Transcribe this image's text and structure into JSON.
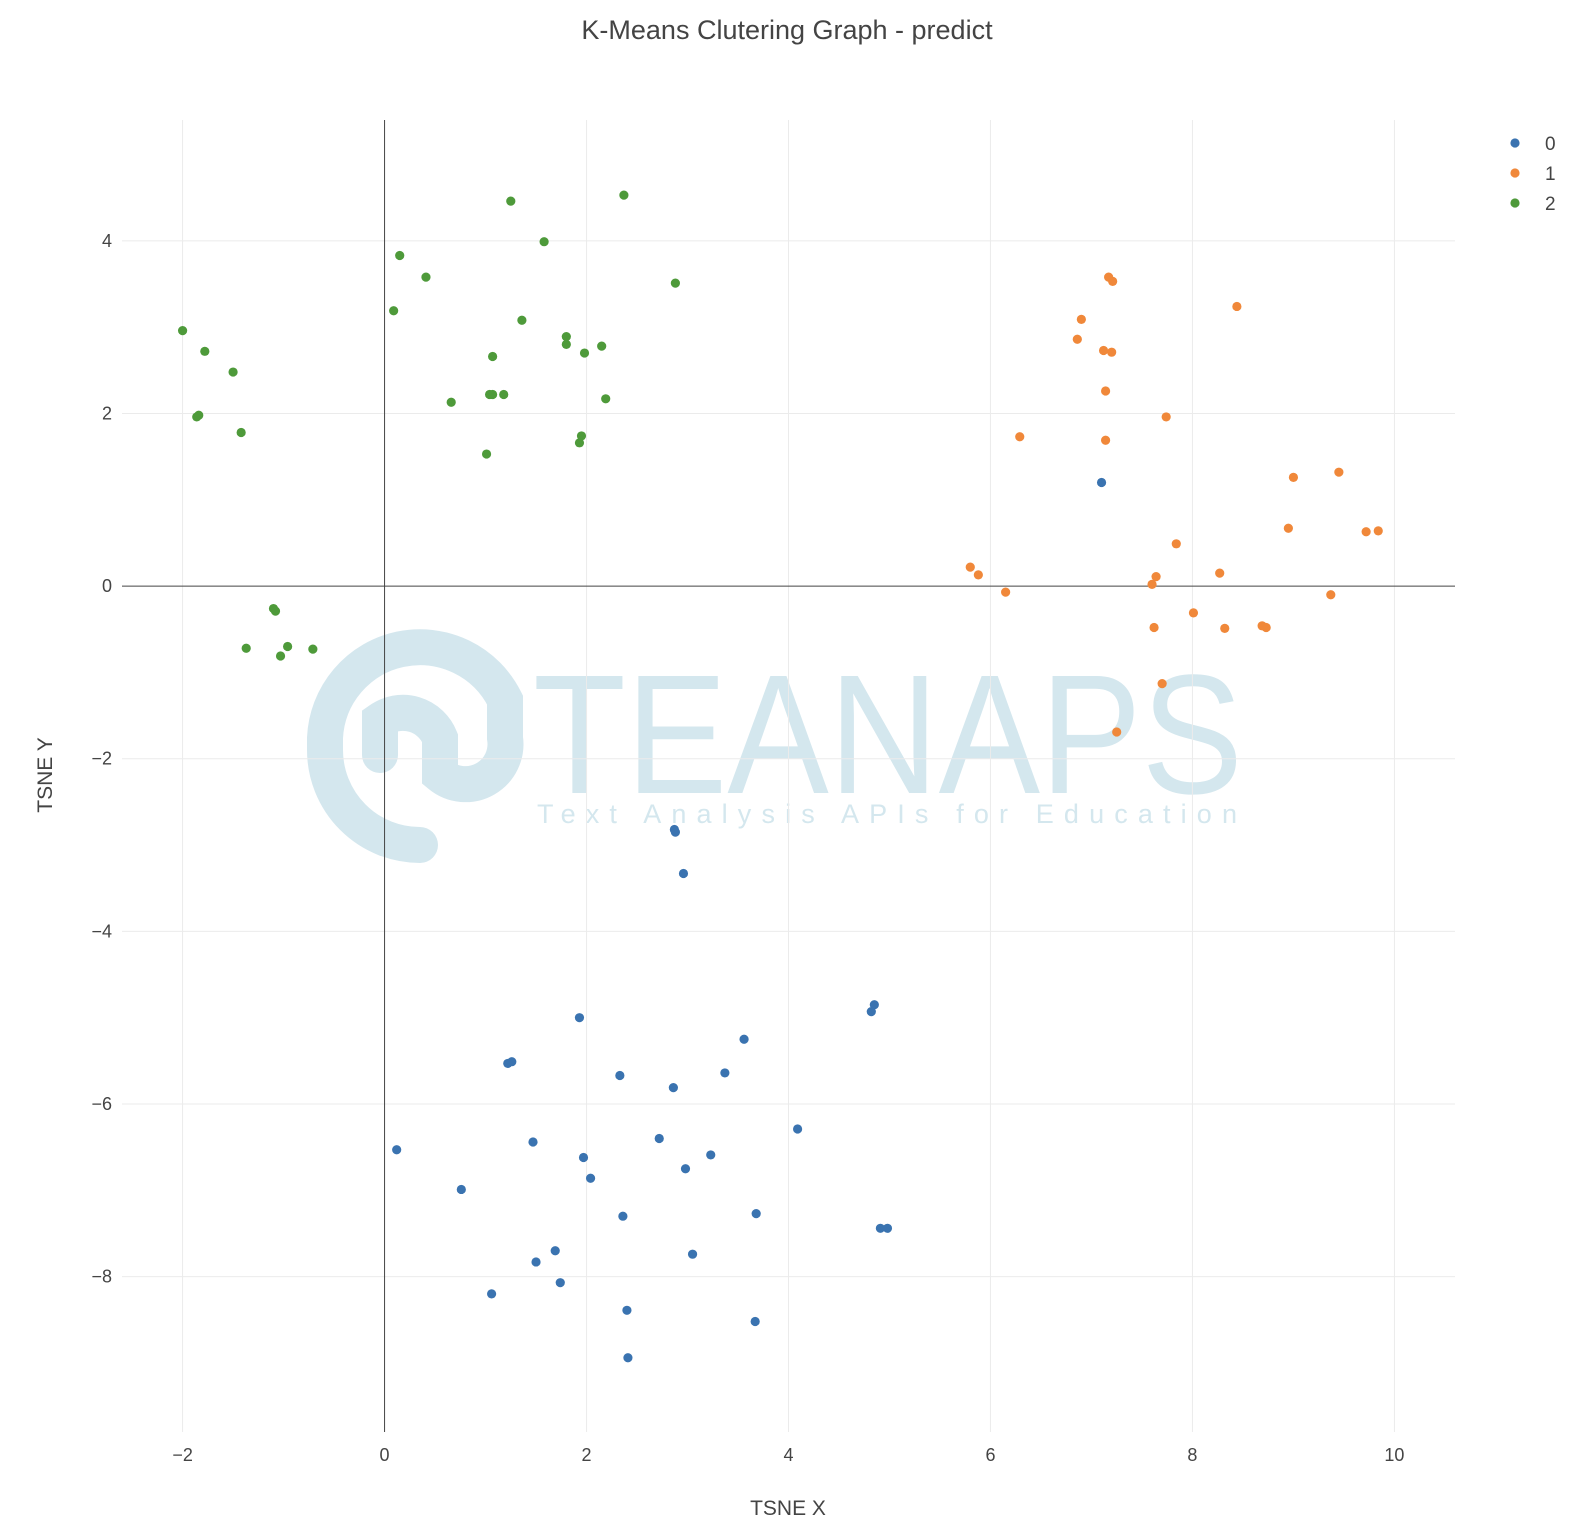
{
  "chart_data": {
    "type": "scatter",
    "title": "K-Means Clutering Graph - predict",
    "xlabel": "TSNE X",
    "ylabel": "TSNE Y",
    "xlim": [
      -2.6,
      10.6
    ],
    "ylim": [
      -9.8,
      5.4
    ],
    "x_ticks": [
      -2,
      0,
      2,
      4,
      6,
      8,
      10
    ],
    "y_ticks": [
      -8,
      -6,
      -4,
      -2,
      0,
      2,
      4
    ],
    "x_tick_labels": [
      "−2",
      "0",
      "2",
      "4",
      "6",
      "8",
      "10"
    ],
    "y_tick_labels": [
      "−8",
      "−6",
      "−4",
      "−2",
      "0",
      "2",
      "4"
    ],
    "grid": true,
    "zero_lines": true,
    "legend_position": "top-right",
    "watermark": {
      "brand": "TEANAPS",
      "tagline": "Text Analysis APIs for Education"
    },
    "series": [
      {
        "name": "0",
        "color": "#3a73b0",
        "points": [
          [
            7.1,
            1.2
          ],
          [
            2.87,
            -2.82
          ],
          [
            2.88,
            -2.85
          ],
          [
            2.96,
            -3.33
          ],
          [
            1.93,
            -5.0
          ],
          [
            4.85,
            -4.85
          ],
          [
            4.82,
            -4.93
          ],
          [
            3.56,
            -5.25
          ],
          [
            1.22,
            -5.53
          ],
          [
            1.26,
            -5.51
          ],
          [
            2.33,
            -5.67
          ],
          [
            3.37,
            -5.64
          ],
          [
            2.86,
            -5.81
          ],
          [
            4.09,
            -6.29
          ],
          [
            0.12,
            -6.53
          ],
          [
            1.47,
            -6.44
          ],
          [
            2.72,
            -6.4
          ],
          [
            1.97,
            -6.62
          ],
          [
            3.23,
            -6.59
          ],
          [
            2.98,
            -6.75
          ],
          [
            2.04,
            -6.86
          ],
          [
            0.76,
            -6.99
          ],
          [
            2.36,
            -7.3
          ],
          [
            3.68,
            -7.27
          ],
          [
            4.91,
            -7.44
          ],
          [
            4.98,
            -7.44
          ],
          [
            1.69,
            -7.7
          ],
          [
            3.05,
            -7.74
          ],
          [
            1.5,
            -7.83
          ],
          [
            1.74,
            -8.07
          ],
          [
            1.06,
            -8.2
          ],
          [
            2.4,
            -8.39
          ],
          [
            3.67,
            -8.52
          ],
          [
            2.41,
            -8.94
          ]
        ]
      },
      {
        "name": "1",
        "color": "#f0883a",
        "points": [
          [
            7.17,
            3.58
          ],
          [
            7.21,
            3.53
          ],
          [
            8.44,
            3.24
          ],
          [
            6.9,
            3.09
          ],
          [
            6.86,
            2.86
          ],
          [
            7.12,
            2.73
          ],
          [
            7.2,
            2.71
          ],
          [
            7.14,
            2.26
          ],
          [
            7.74,
            1.96
          ],
          [
            6.29,
            1.73
          ],
          [
            7.14,
            1.69
          ],
          [
            9.45,
            1.32
          ],
          [
            9.0,
            1.26
          ],
          [
            8.95,
            0.67
          ],
          [
            9.72,
            0.63
          ],
          [
            9.84,
            0.64
          ],
          [
            7.84,
            0.49
          ],
          [
            5.8,
            0.22
          ],
          [
            5.88,
            0.13
          ],
          [
            8.27,
            0.15
          ],
          [
            7.64,
            0.11
          ],
          [
            7.6,
            0.02
          ],
          [
            6.15,
            -0.07
          ],
          [
            9.37,
            -0.1
          ],
          [
            8.01,
            -0.31
          ],
          [
            7.62,
            -0.48
          ],
          [
            8.32,
            -0.49
          ],
          [
            8.69,
            -0.46
          ],
          [
            8.73,
            -0.48
          ],
          [
            7.7,
            -1.13
          ],
          [
            7.25,
            -1.69
          ]
        ]
      },
      {
        "name": "2",
        "color": "#4e9a3a",
        "points": [
          [
            2.37,
            4.53
          ],
          [
            1.25,
            4.46
          ],
          [
            1.58,
            3.99
          ],
          [
            0.15,
            3.83
          ],
          [
            0.41,
            3.58
          ],
          [
            2.88,
            3.51
          ],
          [
            0.09,
            3.19
          ],
          [
            1.36,
            3.08
          ],
          [
            -2.0,
            2.96
          ],
          [
            1.8,
            2.89
          ],
          [
            1.8,
            2.8
          ],
          [
            2.15,
            2.78
          ],
          [
            -1.78,
            2.72
          ],
          [
            1.98,
            2.7
          ],
          [
            1.07,
            2.66
          ],
          [
            -1.5,
            2.48
          ],
          [
            1.04,
            2.22
          ],
          [
            1.07,
            2.22
          ],
          [
            1.18,
            2.22
          ],
          [
            2.19,
            2.17
          ],
          [
            0.66,
            2.13
          ],
          [
            -1.84,
            1.98
          ],
          [
            -1.86,
            1.96
          ],
          [
            -1.42,
            1.78
          ],
          [
            1.95,
            1.74
          ],
          [
            1.93,
            1.66
          ],
          [
            1.01,
            1.53
          ],
          [
            -1.1,
            -0.26
          ],
          [
            -1.08,
            -0.29
          ],
          [
            -1.37,
            -0.72
          ],
          [
            -0.96,
            -0.7
          ],
          [
            -0.71,
            -0.73
          ],
          [
            -1.03,
            -0.81
          ]
        ]
      }
    ]
  }
}
